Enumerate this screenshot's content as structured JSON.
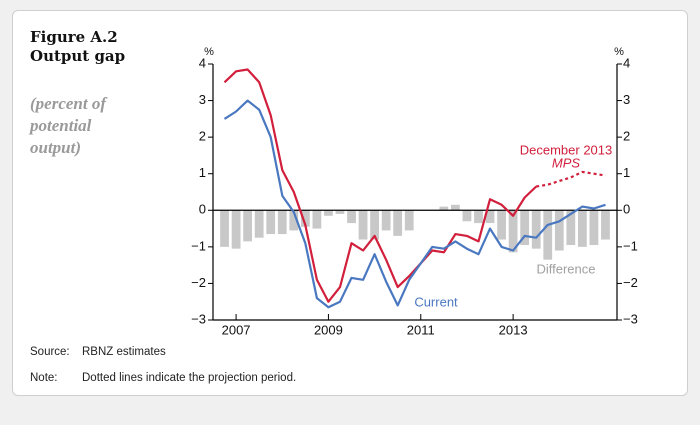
{
  "chart_data": {
    "type": "combo",
    "figure_label": "Figure A.2",
    "title": "Output gap",
    "subtitle": "(percent of potential output)",
    "y_unit": "%",
    "y2_unit": "%",
    "x": [
      2006.75,
      2007,
      2007.25,
      2007.5,
      2007.75,
      2008,
      2008.25,
      2008.5,
      2008.75,
      2009,
      2009.25,
      2009.5,
      2009.75,
      2010,
      2010.25,
      2010.5,
      2010.75,
      2011,
      2011.25,
      2011.5,
      2011.75,
      2012,
      2012.25,
      2012.5,
      2012.75,
      2013,
      2013.25,
      2013.5,
      2013.75,
      2014,
      2014.25,
      2014.5,
      2014.75,
      2015
    ],
    "xlim": [
      2006.5,
      2015.25
    ],
    "xticks": [
      2007,
      2009,
      2011,
      2013
    ],
    "ylim": [
      -3,
      4
    ],
    "y2lim": [
      -3,
      4
    ],
    "yticks": [
      {
        "value": -3,
        "label": "−3"
      },
      {
        "value": -2,
        "label": "−2"
      },
      {
        "value": -1,
        "label": "−1"
      },
      0,
      1,
      2,
      3,
      4
    ],
    "y2ticks": [
      {
        "value": -3,
        "label": "−3"
      },
      {
        "value": -2,
        "label": "−2"
      },
      {
        "value": -1,
        "label": "−1"
      },
      0,
      1,
      2,
      3,
      4
    ],
    "series": [
      {
        "name": "Difference",
        "type": "bar",
        "color": "#c8c8c8",
        "label_color": "#a0a0a0",
        "values": [
          -1.0,
          -1.05,
          -0.85,
          -0.75,
          -0.65,
          -0.65,
          -0.55,
          -0.45,
          -0.5,
          -0.15,
          -0.1,
          -0.35,
          -0.8,
          -0.8,
          -0.55,
          -0.7,
          -0.55,
          0,
          0,
          0.1,
          0.15,
          -0.3,
          -0.35,
          -0.35,
          -0.8,
          -1.15,
          -0.95,
          -1.05,
          -1.35,
          -1.1,
          -0.95,
          -1.0,
          -0.95,
          -0.8
        ]
      },
      {
        "name": "December 2013",
        "name_italic": "MPS",
        "type": "line",
        "color": "#d11f3c",
        "dotted_from": 2013.5,
        "values": [
          3.5,
          3.8,
          3.85,
          3.5,
          2.6,
          1.1,
          0.5,
          -0.4,
          -1.9,
          -2.5,
          -2.1,
          -0.9,
          -1.1,
          -0.7,
          -1.35,
          -2.1,
          -1.8,
          -1.45,
          -1.1,
          -1.15,
          -0.65,
          -0.7,
          -0.85,
          0.3,
          0.15,
          -0.15,
          0.35,
          0.65,
          0.7,
          0.8,
          0.9,
          1.05,
          1.0,
          0.95
        ]
      },
      {
        "name": "Current",
        "type": "line",
        "color": "#4a78c0",
        "values": [
          2.5,
          2.7,
          3.0,
          2.75,
          2.0,
          0.4,
          -0.05,
          -0.9,
          -2.4,
          -2.65,
          -2.5,
          -1.85,
          -1.9,
          -1.2,
          -1.95,
          -2.6,
          -1.9,
          -1.45,
          -1.0,
          -1.05,
          -0.85,
          -1.05,
          -1.2,
          -0.5,
          -1.0,
          -1.1,
          -0.7,
          -0.75,
          -0.4,
          -0.3,
          -0.1,
          0.1,
          0.05,
          0.15
        ]
      }
    ]
  },
  "notes": [
    {
      "label": "Source:",
      "text": "RBNZ estimates"
    },
    {
      "label": "Note:",
      "text": "Dotted lines indicate the projection period."
    }
  ]
}
